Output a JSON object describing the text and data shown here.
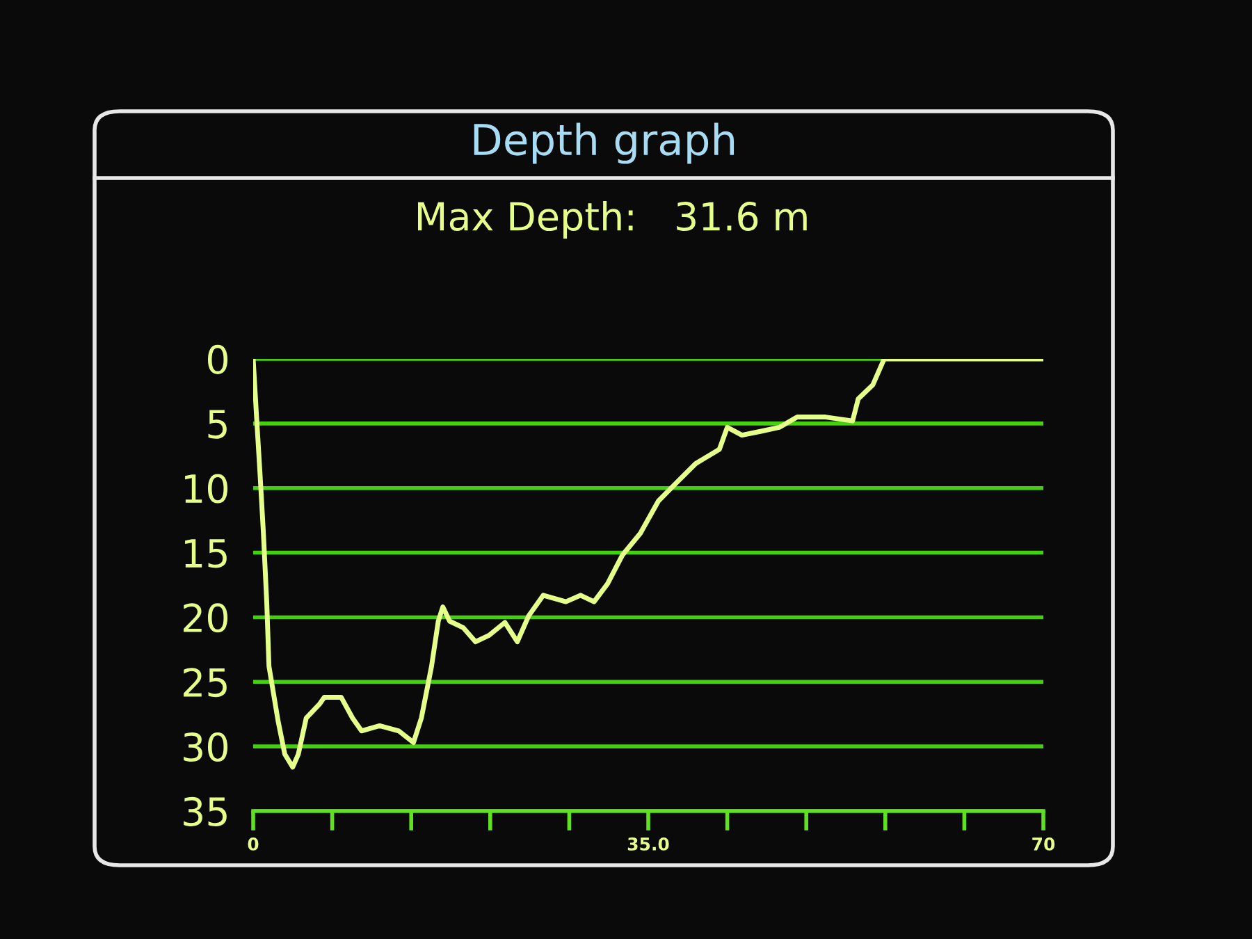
{
  "chart_data": {
    "type": "line",
    "title": "Depth graph",
    "subtitle": "Max Depth:   31.6 m",
    "series": [
      {
        "color": "#e6ff8a",
        "x": [
          0,
          0.3,
          0.6,
          0.9,
          1.2,
          1.4,
          2.2,
          2.8,
          3.5,
          4.0,
          4.7,
          5.9,
          6.3,
          7.8,
          8.8,
          9.6,
          11.2,
          12.9,
          14.2,
          14.9,
          15.8,
          16.4,
          16.8,
          17.4,
          18.6,
          19.7,
          20.9,
          22.3,
          23.4,
          24.4,
          25.7,
          27.7,
          29.0,
          30.2,
          31.4,
          32.7,
          34.3,
          35.9,
          37.6,
          39.2,
          41.3,
          42.0,
          43.3,
          45.0,
          46.6,
          48.2,
          50.7,
          53.1,
          53.6,
          54.9,
          55.9,
          70
        ],
        "values": [
          0,
          4.5,
          8.8,
          13.4,
          18.8,
          23.8,
          28,
          30.6,
          31.6,
          30.6,
          27.8,
          26.7,
          26.2,
          26.2,
          27.8,
          28.8,
          28.4,
          28.8,
          29.7,
          27.8,
          23.8,
          20.3,
          19.2,
          20.3,
          20.8,
          21.9,
          21.4,
          20.4,
          21.9,
          19.9,
          18.3,
          18.8,
          18.3,
          18.8,
          17.4,
          15.2,
          13.5,
          11.0,
          9.5,
          8.1,
          7.0,
          5.3,
          5.9,
          5.6,
          5.3,
          4.5,
          4.5,
          4.8,
          3.1,
          2.0,
          0,
          0
        ]
      }
    ],
    "xlim": [
      0,
      70
    ],
    "xticks": [
      0,
      {
        "value": 7,
        "label": null
      },
      {
        "value": 14,
        "label": null
      },
      {
        "value": 21,
        "label": null
      },
      {
        "value": 28,
        "label": null
      },
      {
        "value": 35,
        "label": "35.0"
      },
      {
        "value": 42,
        "label": null
      },
      {
        "value": 49,
        "label": null
      },
      {
        "value": 56,
        "label": null
      },
      {
        "value": 63,
        "label": null
      },
      70
    ],
    "ylim": [
      35,
      0
    ],
    "yticks": [
      0,
      5,
      10,
      15,
      20,
      25,
      30,
      35
    ],
    "grid": "y",
    "marker": "none",
    "line_style": "solid"
  }
}
